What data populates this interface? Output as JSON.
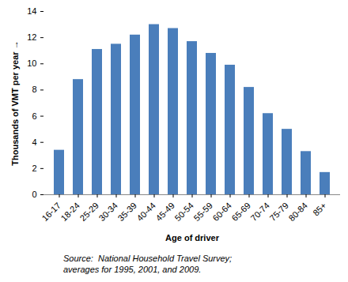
{
  "chart_data": {
    "type": "bar",
    "categories": [
      "16-17",
      "18-24",
      "25-29",
      "30-34",
      "35-39",
      "40-44",
      "45-49",
      "50-54",
      "55-59",
      "60-64",
      "65-69",
      "70-74",
      "75-79",
      "80-84",
      "85+"
    ],
    "values": [
      3.4,
      8.8,
      11.1,
      11.5,
      12.2,
      13.0,
      12.7,
      11.7,
      10.8,
      9.9,
      8.2,
      6.2,
      5.0,
      3.3,
      1.7
    ],
    "color": "#4a7ebb",
    "x_label": "Age of driver",
    "y_label": "Thousands of VMT per year",
    "ylim": [
      0,
      14
    ],
    "yticks": [
      0,
      2,
      4,
      6,
      8,
      10,
      12,
      14
    ],
    "grid": false,
    "caption": [
      "Source:  National Household Travel Survey;",
      "averages for 1995, 2001, and 2009."
    ]
  }
}
